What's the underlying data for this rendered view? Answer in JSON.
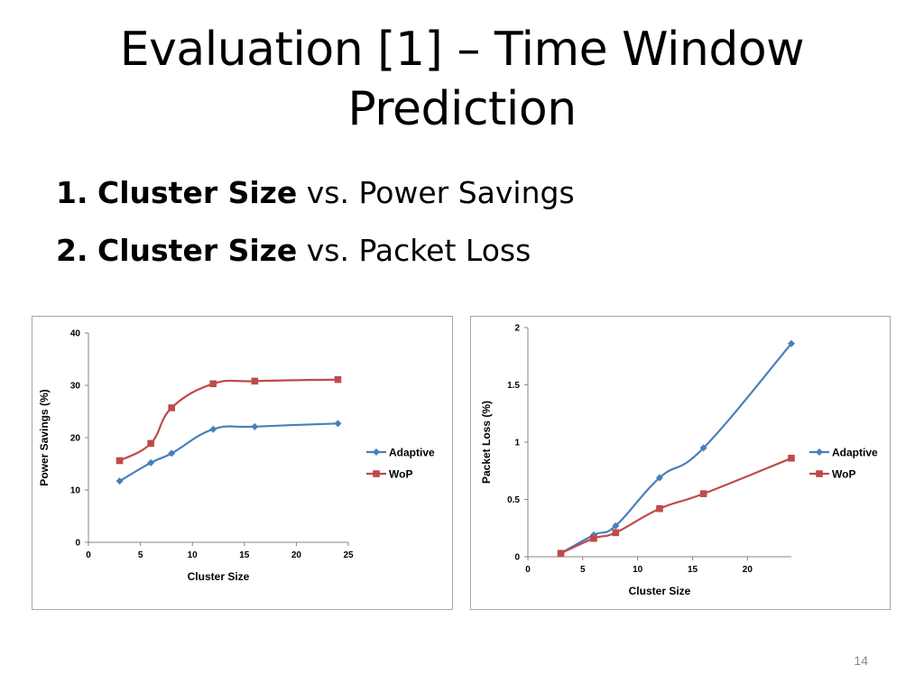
{
  "slide": {
    "title_line1": "Evaluation [1] – Time Window",
    "title_line2": "Prediction",
    "bullets": [
      {
        "number": "1.",
        "bold": "Cluster Size",
        "rest": "vs. Power Savings"
      },
      {
        "number": "2.",
        "bold": "Cluster Size",
        "rest": "vs. Packet Loss"
      }
    ],
    "page_number": "14"
  },
  "chart_data": [
    {
      "type": "line",
      "title": "",
      "xlabel": "Cluster Size",
      "ylabel": "Power Savings (%)",
      "xlim": [
        0,
        25
      ],
      "ylim": [
        0,
        40
      ],
      "x_ticks": [
        0,
        5,
        10,
        15,
        20,
        25
      ],
      "y_ticks": [
        0,
        10,
        20,
        30,
        40
      ],
      "grid": false,
      "legend_position": "right",
      "series": [
        {
          "name": "Adaptive",
          "color": "#4a7ebb",
          "marker": "diamond",
          "x": [
            3,
            6,
            8,
            12,
            16,
            24
          ],
          "y": [
            11.7,
            15.2,
            17.0,
            21.6,
            22.1,
            22.7
          ]
        },
        {
          "name": "WoP",
          "color": "#be4b48",
          "marker": "square",
          "x": [
            3,
            6,
            8,
            12,
            16,
            24
          ],
          "y": [
            15.6,
            18.9,
            25.7,
            30.3,
            30.8,
            31.1
          ]
        }
      ]
    },
    {
      "type": "line",
      "title": "",
      "xlabel": "Cluster Size",
      "ylabel": "Packet Loss (%)",
      "xlim": [
        0,
        24
      ],
      "ylim": [
        0,
        2
      ],
      "x_ticks": [
        0,
        5,
        10,
        15,
        20
      ],
      "y_ticks": [
        0,
        0.5,
        1,
        1.5,
        2
      ],
      "grid": false,
      "legend_position": "right",
      "series": [
        {
          "name": "Adaptive",
          "color": "#4a7ebb",
          "marker": "diamond",
          "x": [
            3,
            6,
            8,
            12,
            16,
            24
          ],
          "y": [
            0.03,
            0.19,
            0.27,
            0.69,
            0.95,
            1.86
          ]
        },
        {
          "name": "WoP",
          "color": "#be4b48",
          "marker": "square",
          "x": [
            3,
            6,
            8,
            12,
            16,
            24
          ],
          "y": [
            0.03,
            0.16,
            0.21,
            0.42,
            0.55,
            0.86
          ]
        }
      ]
    }
  ]
}
